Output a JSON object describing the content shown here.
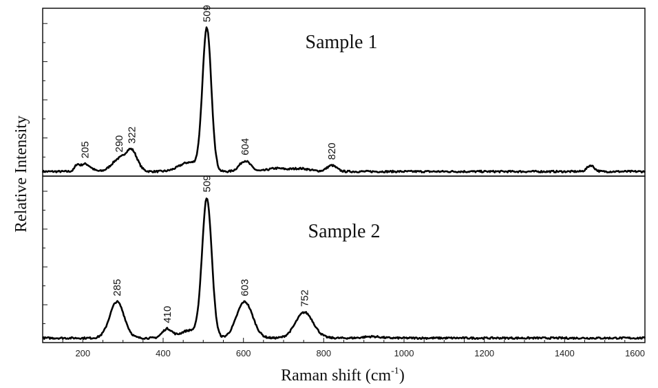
{
  "chart_data": {
    "type": "line",
    "xlabel": "Raman shift (cm",
    "xlabel_sup": "-1",
    "xlabel_close": ")",
    "ylabel": "Relative Intensity",
    "xlim": [
      100,
      1600
    ],
    "xticks": [
      200,
      400,
      600,
      800,
      1000,
      1200,
      1400,
      1600
    ],
    "panels": [
      {
        "name": "Sample 1",
        "ylim": [
          0,
          1.1
        ],
        "baseline": 0.03,
        "peaks": [
          {
            "x": 185,
            "h": 0.03,
            "w": 5
          },
          {
            "x": 205,
            "h": 0.05,
            "w": 14
          },
          {
            "x": 290,
            "h": 0.08,
            "w": 18
          },
          {
            "x": 322,
            "h": 0.13,
            "w": 14
          },
          {
            "x": 509,
            "h": 0.93,
            "w": 11
          },
          {
            "x": 465,
            "h": 0.06,
            "w": 25
          },
          {
            "x": 604,
            "h": 0.07,
            "w": 14
          },
          {
            "x": 680,
            "h": 0.02,
            "w": 20
          },
          {
            "x": 740,
            "h": 0.02,
            "w": 25
          },
          {
            "x": 820,
            "h": 0.04,
            "w": 12
          },
          {
            "x": 1465,
            "h": 0.04,
            "w": 9
          }
        ],
        "labels": [
          {
            "x": 205,
            "text": "205"
          },
          {
            "x": 290,
            "text": "290"
          },
          {
            "x": 322,
            "text": "322"
          },
          {
            "x": 509,
            "text": "509"
          },
          {
            "x": 604,
            "text": "604"
          },
          {
            "x": 820,
            "text": "820"
          }
        ]
      },
      {
        "name": "Sample 2",
        "ylim": [
          0,
          1.1
        ],
        "baseline": 0.03,
        "peaks": [
          {
            "x": 285,
            "h": 0.24,
            "w": 18
          },
          {
            "x": 410,
            "h": 0.06,
            "w": 12
          },
          {
            "x": 509,
            "h": 0.92,
            "w": 12
          },
          {
            "x": 465,
            "h": 0.05,
            "w": 22
          },
          {
            "x": 603,
            "h": 0.24,
            "w": 20
          },
          {
            "x": 752,
            "h": 0.17,
            "w": 22
          },
          {
            "x": 920,
            "h": 0.01,
            "w": 20
          }
        ],
        "labels": [
          {
            "x": 285,
            "text": "285"
          },
          {
            "x": 410,
            "text": "410"
          },
          {
            "x": 509,
            "text": "509"
          },
          {
            "x": 603,
            "text": "603"
          },
          {
            "x": 752,
            "text": "752"
          }
        ]
      }
    ]
  }
}
